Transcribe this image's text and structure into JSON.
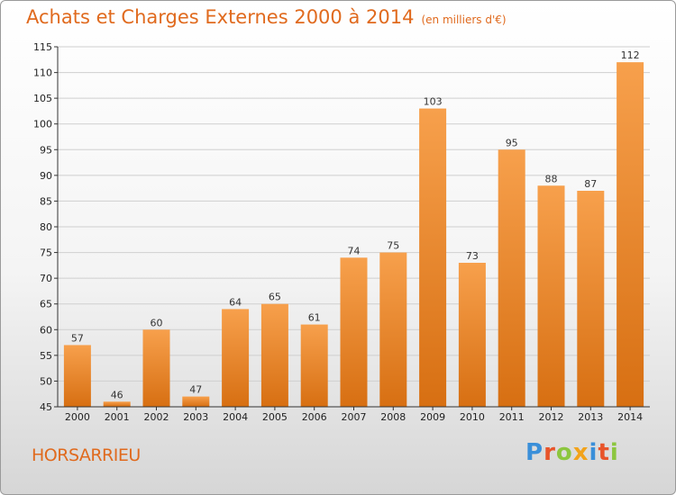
{
  "title": "Achats et Charges Externes 2000 à 2014",
  "unit": "(en milliers d'€)",
  "commune": "HORSARRIEU",
  "logo": {
    "letters": [
      {
        "ch": "P",
        "color": "#3a8fd9"
      },
      {
        "ch": "r",
        "color": "#e8542a"
      },
      {
        "ch": "o",
        "color": "#8cc63f"
      },
      {
        "ch": "x",
        "color": "#f2a31b"
      },
      {
        "ch": "i",
        "color": "#3a8fd9"
      },
      {
        "ch": "t",
        "color": "#e8542a"
      },
      {
        "ch": "i",
        "color": "#8cc63f"
      }
    ]
  },
  "colors": {
    "bar_top": "#f7a04c",
    "bar_bottom": "#d76f12",
    "accent": "#e06a1e"
  },
  "chart_data": {
    "type": "bar",
    "categories": [
      "2000",
      "2001",
      "2002",
      "2003",
      "2004",
      "2005",
      "2006",
      "2007",
      "2008",
      "2009",
      "2010",
      "2011",
      "2012",
      "2013",
      "2014"
    ],
    "values": [
      57,
      46,
      60,
      47,
      64,
      65,
      61,
      74,
      75,
      103,
      73,
      95,
      88,
      87,
      112
    ],
    "ylim": [
      45,
      115
    ],
    "yticks": [
      45,
      50,
      55,
      60,
      65,
      70,
      75,
      80,
      85,
      90,
      95,
      100,
      105,
      110,
      115
    ],
    "xlabel": "",
    "ylabel": "",
    "grid": true,
    "legend": "none"
  }
}
